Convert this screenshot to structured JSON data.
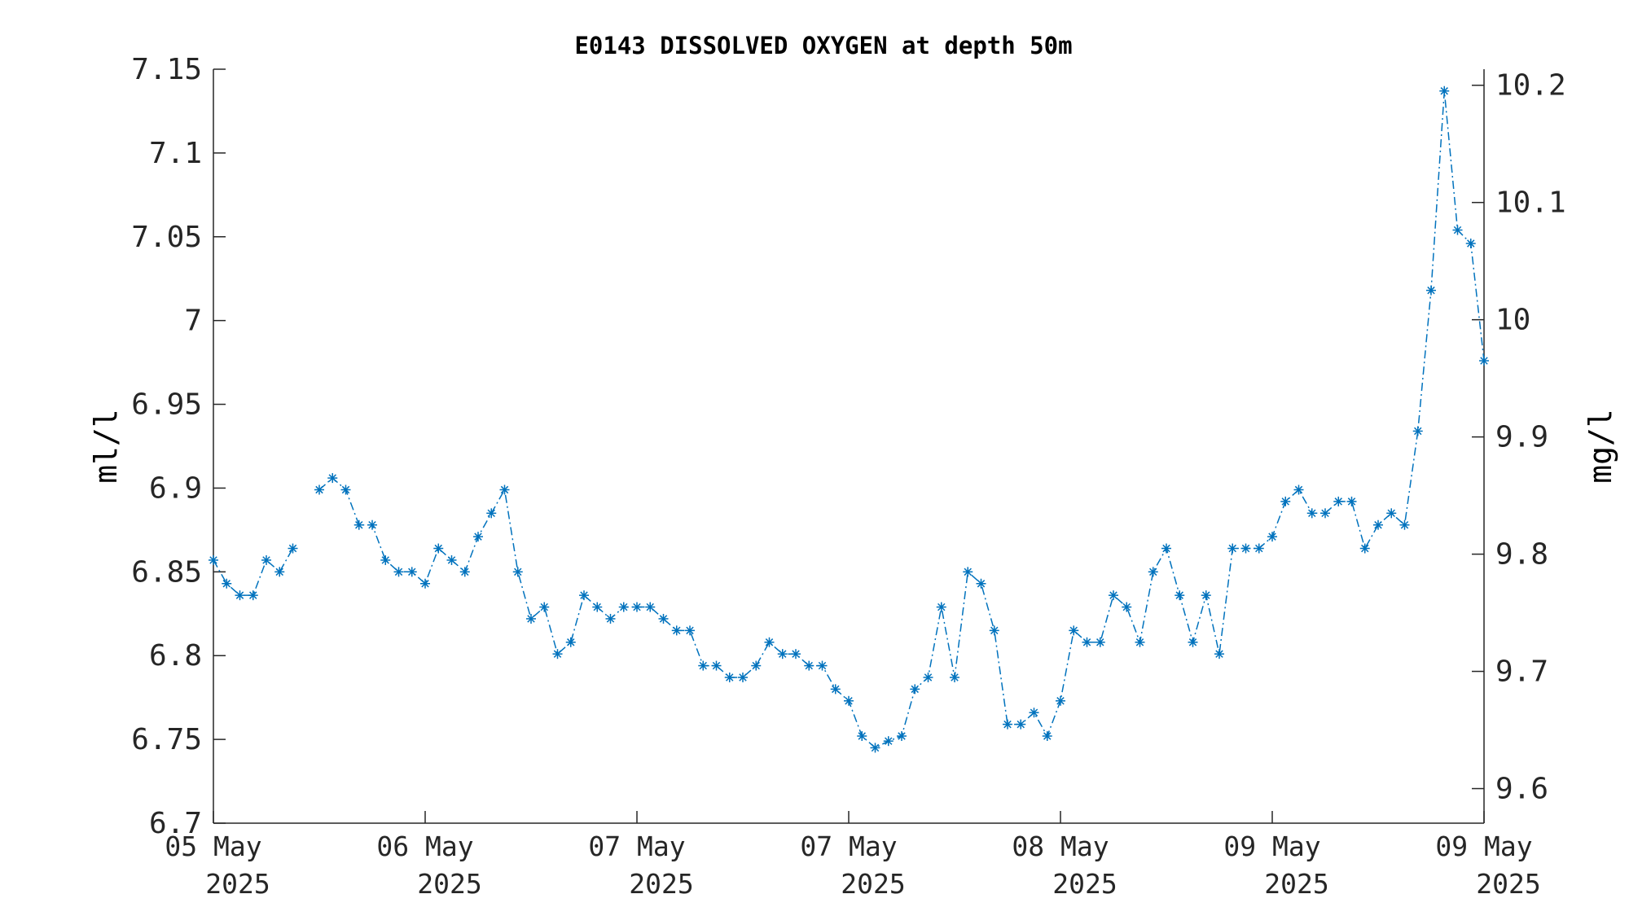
{
  "chart_data": {
    "type": "line",
    "title": "E0143 DISSOLVED OXYGEN at depth 50m",
    "ylabel": "ml/l",
    "ylabel_right": "mg/l",
    "ylim": [
      6.7,
      7.15
    ],
    "ylim_right": [
      9.5705,
      10.2137
    ],
    "yticks": [
      "6.7",
      "6.75",
      "6.8",
      "6.85",
      "6.9",
      "6.95",
      "7",
      "7.05",
      "7.1",
      "7.15"
    ],
    "yticks_right": [
      "9.6",
      "9.7",
      "9.8",
      "9.9",
      "10",
      "10.1",
      "10.2"
    ],
    "xticks": [
      {
        "line1": "05 May",
        "line2": "2025"
      },
      {
        "line1": "06 May",
        "line2": "2025"
      },
      {
        "line1": "07 May",
        "line2": "2025"
      },
      {
        "line1": "07 May",
        "line2": "2025"
      },
      {
        "line1": "08 May",
        "line2": "2025"
      },
      {
        "line1": "09 May",
        "line2": "2025"
      },
      {
        "line1": "09 May",
        "line2": "2025"
      }
    ],
    "xlim": [
      0,
      96
    ],
    "grid": false,
    "series": [
      {
        "color": "#0072BD",
        "marker": "asterisk",
        "linestyle": "dash-dot",
        "segments": [
          {
            "x": [
              0,
              1,
              2,
              3,
              4,
              5,
              6
            ],
            "y": [
              6.857,
              6.843,
              6.836,
              6.836,
              6.857,
              6.85,
              6.864
            ]
          },
          {
            "x": [
              8,
              9,
              10,
              11,
              12,
              13,
              14,
              15,
              16,
              17,
              18,
              19,
              20,
              21,
              22,
              23,
              24,
              25,
              26,
              27,
              28,
              29,
              30,
              31,
              32,
              33,
              34,
              35,
              36,
              37,
              38,
              39,
              40,
              41,
              42,
              43,
              44,
              45,
              46,
              47,
              48,
              49,
              50,
              51,
              52,
              53,
              54,
              55,
              56,
              57,
              58,
              59,
              60,
              61,
              62,
              63,
              64,
              65,
              66,
              67,
              68,
              69,
              70,
              71,
              72,
              73,
              74,
              75,
              76,
              77,
              78,
              79,
              80,
              81,
              82,
              83,
              84,
              85,
              86,
              87,
              88,
              89,
              90,
              91,
              92,
              93,
              94,
              95,
              96
            ],
            "y": [
              6.899,
              6.906,
              6.899,
              6.878,
              6.878,
              6.857,
              6.85,
              6.85,
              6.843,
              6.864,
              6.857,
              6.85,
              6.871,
              6.885,
              6.899,
              6.85,
              6.822,
              6.829,
              6.801,
              6.808,
              6.836,
              6.829,
              6.822,
              6.829,
              6.829,
              6.829,
              6.822,
              6.815,
              6.815,
              6.794,
              6.794,
              6.787,
              6.787,
              6.794,
              6.808,
              6.801,
              6.801,
              6.794,
              6.794,
              6.78,
              6.773,
              6.752,
              6.745,
              6.749,
              6.752,
              6.78,
              6.787,
              6.829,
              6.787,
              6.85,
              6.843,
              6.815,
              6.759,
              6.759,
              6.766,
              6.752,
              6.773,
              6.815,
              6.808,
              6.808,
              6.836,
              6.829,
              6.808,
              6.85,
              6.864,
              6.836,
              6.808,
              6.836,
              6.801,
              6.864,
              6.864,
              6.864,
              6.871,
              6.892,
              6.899,
              6.885,
              6.885,
              6.892,
              6.892,
              6.864,
              6.878,
              6.885,
              6.878,
              6.934,
              7.018,
              7.137,
              7.054,
              7.046,
              6.976
            ]
          }
        ]
      }
    ]
  }
}
